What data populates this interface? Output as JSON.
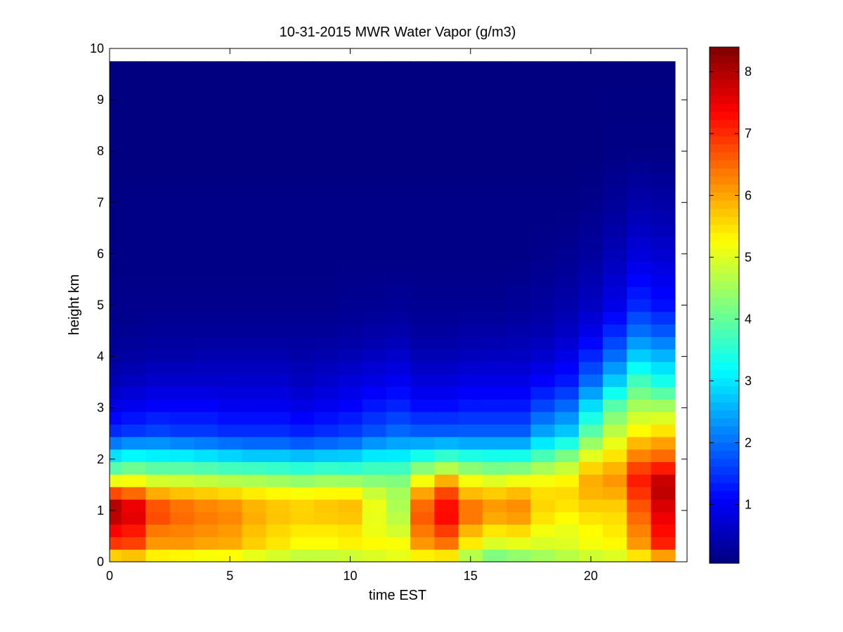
{
  "chart_data": {
    "type": "heatmap",
    "title": "10-31-2015 MWR Water Vapor (g/m3)",
    "xlabel": "time EST",
    "ylabel": "height km",
    "xlim": [
      0,
      24
    ],
    "ylim": [
      0,
      10
    ],
    "x_ticks": [
      "0",
      "5",
      "10",
      "15",
      "20"
    ],
    "y_ticks": [
      "0",
      "1",
      "2",
      "3",
      "4",
      "5",
      "6",
      "7",
      "8",
      "9",
      "10"
    ],
    "colorbar": {
      "colormap": "jet",
      "range": [
        0.05,
        8.4
      ],
      "ticks": [
        "1",
        "2",
        "3",
        "4",
        "5",
        "6",
        "7",
        "8"
      ]
    },
    "grid": false,
    "data_extent": {
      "x": [
        0,
        23.5
      ],
      "y": [
        0,
        9.75
      ]
    },
    "x_centers": [
      0,
      1,
      2,
      3,
      4,
      5,
      6,
      7,
      8,
      9,
      10,
      11,
      12,
      13,
      14,
      15,
      16,
      17,
      18,
      19,
      20,
      21,
      22,
      23
    ],
    "heights_km": [
      0.05,
      0.2,
      0.5,
      0.75,
      1.0,
      1.25,
      1.5,
      1.75,
      2.0,
      2.25,
      2.5,
      3.0,
      3.5,
      4.0,
      4.5,
      5.0,
      6.0,
      7.0,
      8.0,
      9.75
    ],
    "columns": [
      {
        "time": 0,
        "values": [
          4.8,
          6.6,
          7.2,
          7.6,
          8.3,
          7.4,
          5.6,
          4.2,
          3.2,
          2.3,
          1.5,
          0.9,
          0.5,
          0.3,
          0.2,
          0.15,
          0.1,
          0.1,
          0.05,
          0.05
        ]
      },
      {
        "time": 1,
        "values": [
          5.0,
          6.6,
          7.0,
          7.4,
          7.8,
          7.0,
          5.6,
          4.4,
          3.4,
          2.5,
          1.6,
          1.0,
          0.6,
          0.35,
          0.2,
          0.15,
          0.1,
          0.1,
          0.05,
          0.05
        ]
      },
      {
        "time": 2,
        "values": [
          4.8,
          6.0,
          6.2,
          6.6,
          6.9,
          6.3,
          5.3,
          4.2,
          3.3,
          2.5,
          1.7,
          1.1,
          0.7,
          0.4,
          0.25,
          0.15,
          0.1,
          0.1,
          0.05,
          0.05
        ]
      },
      {
        "time": 3,
        "values": [
          4.7,
          6.0,
          6.2,
          6.4,
          6.6,
          6.1,
          5.2,
          4.2,
          3.3,
          2.4,
          1.6,
          1.1,
          0.7,
          0.4,
          0.25,
          0.15,
          0.1,
          0.1,
          0.05,
          0.05
        ]
      },
      {
        "time": 4,
        "values": [
          4.6,
          5.9,
          6.1,
          6.3,
          6.4,
          6.0,
          5.1,
          4.1,
          3.2,
          2.3,
          1.6,
          1.1,
          0.7,
          0.45,
          0.25,
          0.15,
          0.1,
          0.1,
          0.05,
          0.05
        ]
      },
      {
        "time": 5,
        "values": [
          4.7,
          5.9,
          6.0,
          6.2,
          6.3,
          5.9,
          5.0,
          4.0,
          3.1,
          2.2,
          1.5,
          1.0,
          0.7,
          0.45,
          0.25,
          0.15,
          0.1,
          0.1,
          0.05,
          0.05
        ]
      },
      {
        "time": 6,
        "values": [
          4.6,
          5.6,
          5.7,
          5.9,
          6.0,
          5.7,
          4.9,
          4.0,
          3.0,
          2.1,
          1.5,
          1.0,
          0.7,
          0.45,
          0.25,
          0.15,
          0.1,
          0.1,
          0.05,
          0.05
        ]
      },
      {
        "time": 7,
        "values": [
          4.5,
          5.4,
          5.5,
          5.7,
          5.8,
          5.6,
          4.8,
          3.9,
          3.0,
          2.1,
          1.5,
          1.0,
          0.7,
          0.45,
          0.25,
          0.15,
          0.1,
          0.1,
          0.05,
          0.05
        ]
      },
      {
        "time": 8,
        "values": [
          4.4,
          5.2,
          5.3,
          5.6,
          5.7,
          5.5,
          4.7,
          3.8,
          2.9,
          2.0,
          1.4,
          0.9,
          0.6,
          0.4,
          0.25,
          0.15,
          0.1,
          0.1,
          0.05,
          0.05
        ]
      },
      {
        "time": 9,
        "values": [
          4.4,
          5.2,
          5.3,
          5.6,
          5.8,
          5.6,
          4.8,
          3.9,
          3.0,
          2.1,
          1.5,
          1.0,
          0.7,
          0.45,
          0.25,
          0.15,
          0.1,
          0.1,
          0.05,
          0.05
        ]
      },
      {
        "time": 10,
        "values": [
          4.5,
          5.3,
          5.4,
          5.6,
          5.9,
          5.6,
          4.8,
          3.8,
          3.0,
          2.2,
          1.6,
          1.1,
          0.8,
          0.5,
          0.3,
          0.2,
          0.1,
          0.1,
          0.05,
          0.05
        ]
      },
      {
        "time": 11,
        "values": [
          4.6,
          5.4,
          5.2,
          5.0,
          5.2,
          5.0,
          4.5,
          3.9,
          3.2,
          2.5,
          1.8,
          1.3,
          0.9,
          0.6,
          0.35,
          0.2,
          0.1,
          0.1,
          0.05,
          0.05
        ]
      },
      {
        "time": 12,
        "values": [
          4.7,
          5.5,
          5.0,
          4.8,
          4.6,
          4.6,
          4.4,
          3.9,
          3.2,
          2.6,
          2.0,
          1.4,
          1.0,
          0.7,
          0.4,
          0.25,
          0.1,
          0.1,
          0.05,
          0.05
        ]
      },
      {
        "time": 13,
        "values": [
          4.8,
          6.0,
          6.2,
          6.6,
          6.6,
          6.3,
          5.5,
          4.6,
          3.6,
          2.7,
          1.9,
          1.2,
          0.8,
          0.5,
          0.3,
          0.2,
          0.1,
          0.1,
          0.05,
          0.05
        ]
      },
      {
        "time": 14,
        "values": [
          4.8,
          6.2,
          6.6,
          7.2,
          7.4,
          7.0,
          6.4,
          5.0,
          3.9,
          2.8,
          1.9,
          1.2,
          0.8,
          0.5,
          0.3,
          0.2,
          0.1,
          0.1,
          0.05,
          0.05
        ]
      },
      {
        "time": 15,
        "values": [
          4.2,
          5.2,
          5.6,
          6.2,
          6.6,
          6.0,
          5.5,
          4.6,
          3.7,
          2.7,
          1.9,
          1.3,
          0.9,
          0.55,
          0.35,
          0.2,
          0.1,
          0.1,
          0.05,
          0.05
        ]
      },
      {
        "time": 16,
        "values": [
          3.8,
          4.7,
          5.2,
          5.8,
          6.2,
          5.9,
          5.3,
          4.4,
          3.6,
          2.7,
          1.9,
          1.3,
          0.9,
          0.6,
          0.35,
          0.2,
          0.1,
          0.1,
          0.05,
          0.05
        ]
      },
      {
        "time": 17,
        "values": [
          4.0,
          4.8,
          5.3,
          5.9,
          6.3,
          6.0,
          5.5,
          4.5,
          3.6,
          2.7,
          1.9,
          1.3,
          0.9,
          0.6,
          0.4,
          0.25,
          0.1,
          0.1,
          0.05,
          0.05
        ]
      },
      {
        "time": 18,
        "values": [
          4.2,
          4.9,
          5.0,
          5.4,
          5.6,
          5.6,
          5.4,
          4.8,
          4.0,
          3.2,
          2.5,
          1.7,
          1.1,
          0.7,
          0.45,
          0.3,
          0.15,
          0.1,
          0.05,
          0.05
        ]
      },
      {
        "time": 19,
        "values": [
          4.4,
          5.0,
          5.0,
          5.2,
          5.4,
          5.6,
          5.5,
          5.0,
          4.4,
          3.6,
          2.8,
          2.0,
          1.3,
          0.9,
          0.6,
          0.4,
          0.2,
          0.1,
          0.05,
          0.05
        ]
      },
      {
        "time": 20,
        "values": [
          4.6,
          5.2,
          5.2,
          5.4,
          5.6,
          5.8,
          6.0,
          5.8,
          5.2,
          4.6,
          4.0,
          3.0,
          2.0,
          1.4,
          0.9,
          0.6,
          0.3,
          0.15,
          0.05,
          0.05
        ]
      },
      {
        "time": 21,
        "values": [
          4.8,
          5.2,
          5.4,
          5.5,
          5.6,
          5.8,
          6.2,
          6.0,
          5.6,
          5.2,
          4.8,
          4.0,
          2.8,
          2.0,
          1.4,
          0.9,
          0.5,
          0.25,
          0.1,
          0.05
        ]
      },
      {
        "time": 22,
        "values": [
          5.0,
          6.0,
          6.2,
          6.4,
          6.6,
          6.8,
          7.2,
          7.0,
          6.4,
          6.0,
          5.4,
          4.6,
          3.8,
          2.8,
          2.0,
          1.4,
          0.8,
          0.4,
          0.1,
          0.05
        ]
      },
      {
        "time": 23,
        "values": [
          5.2,
          7.0,
          7.2,
          7.4,
          7.6,
          7.8,
          8.0,
          7.4,
          6.6,
          6.2,
          5.6,
          4.6,
          3.4,
          2.6,
          1.8,
          1.2,
          0.7,
          0.35,
          0.1,
          0.05
        ]
      }
    ]
  }
}
